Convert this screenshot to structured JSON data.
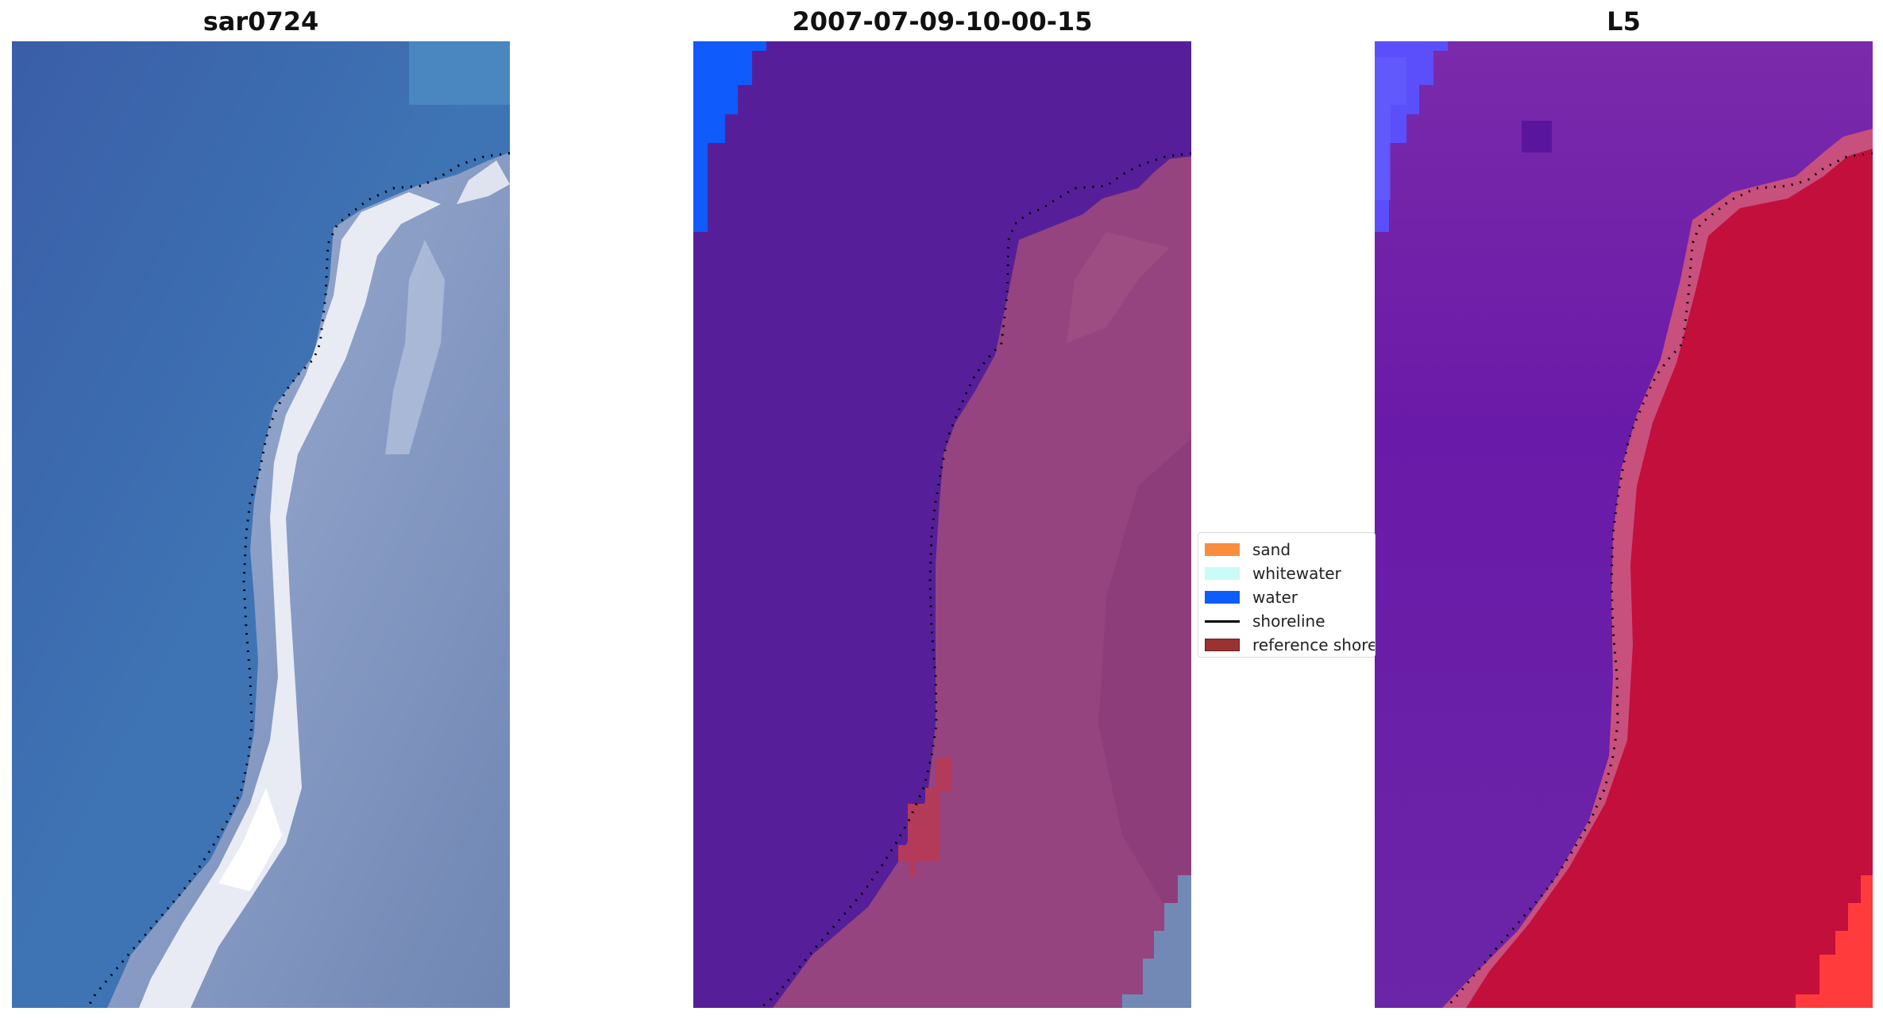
{
  "panels": [
    {
      "title": "sar0724"
    },
    {
      "title": "2007-07-09-10-00-15"
    },
    {
      "title": "L5"
    }
  ],
  "legend": {
    "items": [
      {
        "label": "sand",
        "color": "#f98d3e"
      },
      {
        "label": "whitewater",
        "color": "#c9fbf8"
      },
      {
        "label": "water",
        "color": "#0d5cfb"
      },
      {
        "label": "shoreline",
        "color": "#000000"
      },
      {
        "label": "reference shoreline",
        "color": "#9b3232"
      }
    ]
  },
  "colors": {
    "sea_rgb": "#3f6fae",
    "surf_rgb": "#e6e9f3",
    "land_rgb": "#7f8fb8",
    "water_class": "#561f99",
    "land_class": "#93427e",
    "water_index": "#6a22a6",
    "land_index": "#c0103c"
  }
}
